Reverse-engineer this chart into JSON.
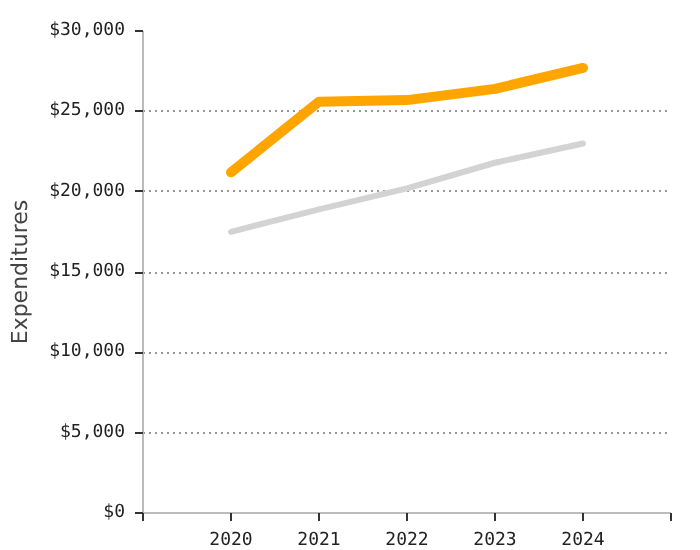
{
  "chart_data": {
    "type": "line",
    "ylabel": "Expenditures",
    "x": [
      2020,
      2021,
      2022,
      2023,
      2024
    ],
    "xlim": [
      2019,
      2025
    ],
    "xticks": [
      {
        "value": 2019,
        "label": null
      },
      2020,
      2021,
      2022,
      2023,
      2024,
      {
        "value": 2025,
        "label": null
      }
    ],
    "ylim": [
      0,
      30000
    ],
    "yticks": [
      {
        "value": 0,
        "label": "$0"
      },
      {
        "value": 5000,
        "label": "$5,000"
      },
      {
        "value": 10000,
        "label": "$10,000"
      },
      {
        "value": 15000,
        "label": "$15,000"
      },
      {
        "value": 20000,
        "label": "$20,000"
      },
      {
        "value": 25000,
        "label": "$25,000"
      },
      {
        "value": 30000,
        "label": "$30,000"
      }
    ],
    "grid": "y",
    "marker": "none",
    "line_style": "solid",
    "series": [
      {
        "color": "#ffa500",
        "values": [
          21200,
          25600,
          25700,
          26400,
          27700
        ]
      },
      {
        "color": "#d3d3d3",
        "values": [
          17500,
          18900,
          20200,
          21800,
          23000
        ]
      }
    ]
  }
}
